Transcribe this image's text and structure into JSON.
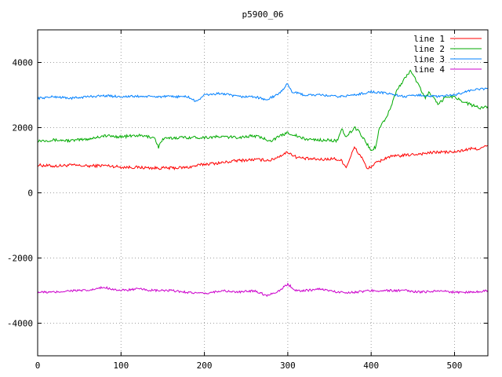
{
  "chart_data": {
    "type": "line",
    "title": "p5900_06",
    "xlabel": "",
    "ylabel": "",
    "xlim": [
      0,
      540
    ],
    "ylim": [
      -5000,
      5000
    ],
    "x_ticks": [
      0,
      100,
      200,
      300,
      400,
      500
    ],
    "y_ticks": [
      -4000,
      -2000,
      0,
      2000,
      4000
    ],
    "grid": true,
    "legend_position": "top-right",
    "series": [
      {
        "name": "line 1",
        "color": "#ff0000",
        "points": [
          [
            0,
            850
          ],
          [
            20,
            820
          ],
          [
            40,
            850
          ],
          [
            60,
            820
          ],
          [
            80,
            840
          ],
          [
            100,
            790
          ],
          [
            120,
            780
          ],
          [
            140,
            760
          ],
          [
            160,
            760
          ],
          [
            180,
            780
          ],
          [
            200,
            880
          ],
          [
            220,
            920
          ],
          [
            240,
            990
          ],
          [
            260,
            1020
          ],
          [
            280,
            1000
          ],
          [
            300,
            1250
          ],
          [
            310,
            1100
          ],
          [
            320,
            1050
          ],
          [
            340,
            1020
          ],
          [
            355,
            1050
          ],
          [
            365,
            980
          ],
          [
            370,
            780
          ],
          [
            380,
            1400
          ],
          [
            385,
            1200
          ],
          [
            390,
            1050
          ],
          [
            395,
            720
          ],
          [
            405,
            900
          ],
          [
            420,
            1100
          ],
          [
            440,
            1150
          ],
          [
            460,
            1200
          ],
          [
            480,
            1250
          ],
          [
            500,
            1250
          ],
          [
            520,
            1350
          ],
          [
            530,
            1350
          ],
          [
            540,
            1450
          ]
        ]
      },
      {
        "name": "line 2",
        "color": "#00aa00",
        "points": [
          [
            0,
            1600
          ],
          [
            20,
            1620
          ],
          [
            40,
            1600
          ],
          [
            60,
            1650
          ],
          [
            70,
            1700
          ],
          [
            80,
            1750
          ],
          [
            100,
            1720
          ],
          [
            120,
            1760
          ],
          [
            140,
            1700
          ],
          [
            145,
            1400
          ],
          [
            150,
            1650
          ],
          [
            170,
            1700
          ],
          [
            200,
            1700
          ],
          [
            220,
            1720
          ],
          [
            240,
            1700
          ],
          [
            260,
            1750
          ],
          [
            280,
            1600
          ],
          [
            300,
            1850
          ],
          [
            320,
            1650
          ],
          [
            340,
            1620
          ],
          [
            360,
            1600
          ],
          [
            365,
            1950
          ],
          [
            370,
            1700
          ],
          [
            380,
            2000
          ],
          [
            385,
            1900
          ],
          [
            395,
            1500
          ],
          [
            400,
            1300
          ],
          [
            405,
            1400
          ],
          [
            410,
            2000
          ],
          [
            420,
            2400
          ],
          [
            430,
            3100
          ],
          [
            440,
            3500
          ],
          [
            447,
            3750
          ],
          [
            455,
            3400
          ],
          [
            465,
            2900
          ],
          [
            470,
            3100
          ],
          [
            480,
            2700
          ],
          [
            490,
            2950
          ],
          [
            500,
            2950
          ],
          [
            510,
            2800
          ],
          [
            520,
            2700
          ],
          [
            530,
            2600
          ],
          [
            540,
            2650
          ]
        ]
      },
      {
        "name": "line 3",
        "color": "#0080ff",
        "points": [
          [
            0,
            2900
          ],
          [
            20,
            2950
          ],
          [
            40,
            2900
          ],
          [
            60,
            2950
          ],
          [
            80,
            2980
          ],
          [
            100,
            2950
          ],
          [
            120,
            2960
          ],
          [
            140,
            2950
          ],
          [
            160,
            2950
          ],
          [
            180,
            2950
          ],
          [
            190,
            2800
          ],
          [
            200,
            3000
          ],
          [
            220,
            3050
          ],
          [
            240,
            2950
          ],
          [
            260,
            2950
          ],
          [
            275,
            2850
          ],
          [
            290,
            3050
          ],
          [
            300,
            3350
          ],
          [
            305,
            3100
          ],
          [
            320,
            3000
          ],
          [
            340,
            3000
          ],
          [
            360,
            2950
          ],
          [
            380,
            3000
          ],
          [
            400,
            3100
          ],
          [
            420,
            3050
          ],
          [
            440,
            2950
          ],
          [
            460,
            3000
          ],
          [
            480,
            2950
          ],
          [
            500,
            3000
          ],
          [
            520,
            3150
          ],
          [
            540,
            3200
          ]
        ]
      },
      {
        "name": "line 4",
        "color": "#cc00cc",
        "points": [
          [
            0,
            -3050
          ],
          [
            20,
            -3050
          ],
          [
            40,
            -3000
          ],
          [
            60,
            -3000
          ],
          [
            80,
            -2900
          ],
          [
            100,
            -3000
          ],
          [
            120,
            -2950
          ],
          [
            140,
            -3000
          ],
          [
            160,
            -3000
          ],
          [
            180,
            -3050
          ],
          [
            200,
            -3100
          ],
          [
            220,
            -3000
          ],
          [
            240,
            -3050
          ],
          [
            260,
            -3000
          ],
          [
            275,
            -3150
          ],
          [
            290,
            -3000
          ],
          [
            300,
            -2800
          ],
          [
            310,
            -3000
          ],
          [
            320,
            -3000
          ],
          [
            340,
            -2950
          ],
          [
            350,
            -3000
          ],
          [
            360,
            -3050
          ],
          [
            380,
            -3050
          ],
          [
            400,
            -3000
          ],
          [
            420,
            -3000
          ],
          [
            440,
            -3000
          ],
          [
            460,
            -3050
          ],
          [
            480,
            -3000
          ],
          [
            500,
            -3050
          ],
          [
            520,
            -3050
          ],
          [
            540,
            -3000
          ]
        ]
      }
    ]
  }
}
